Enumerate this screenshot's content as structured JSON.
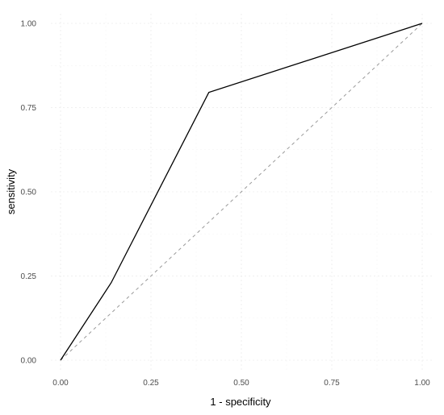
{
  "chart_data": {
    "type": "line",
    "xlabel": "1 - specificity",
    "ylabel": "sensitivity",
    "xlim": [
      0,
      1
    ],
    "ylim": [
      0,
      1
    ],
    "xticks": [
      "0.00",
      "0.25",
      "0.50",
      "0.75",
      "1.00"
    ],
    "yticks": [
      "0.00",
      "0.25",
      "0.50",
      "0.75",
      "1.00"
    ],
    "grid": true,
    "series": [
      {
        "x": [
          0,
          0.14,
          0.41,
          1
        ],
        "y": [
          0,
          0.23,
          0.795,
          1
        ],
        "color": "#000000",
        "style": "solid"
      },
      {
        "x": [
          0,
          1
        ],
        "y": [
          0,
          1
        ],
        "color": "#9a9a9a",
        "style": "dashed"
      }
    ]
  }
}
